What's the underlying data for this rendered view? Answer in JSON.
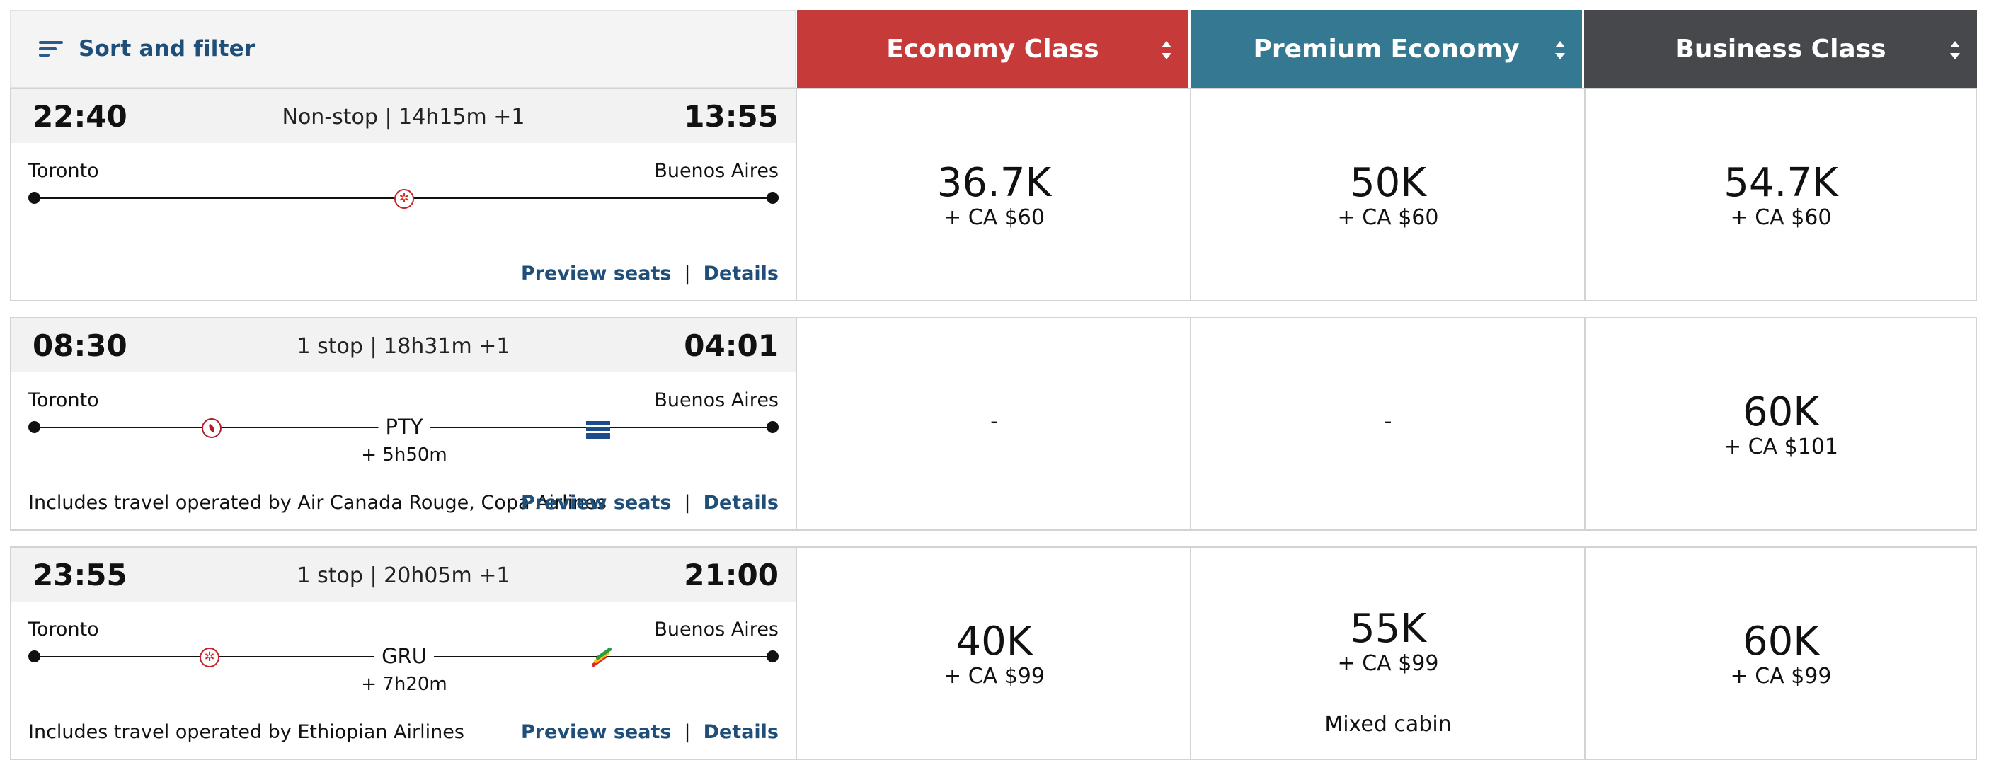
{
  "header": {
    "sort_filter_label": "Sort and filter",
    "cabins": [
      {
        "label": "Economy Class",
        "color": "#c73a3a"
      },
      {
        "label": "Premium Economy",
        "color": "#357891"
      },
      {
        "label": "Business Class",
        "color": "#47484b"
      }
    ]
  },
  "flights": [
    {
      "depart": "22:40",
      "arrive": "13:55",
      "stops": "Non-stop | 14h15m +1",
      "origin": "Toronto",
      "destination": "Buenos Aires",
      "operated_by": "",
      "preview_label": "Preview seats",
      "details_label": "Details",
      "separator": "|",
      "prices": [
        {
          "points": "36.7K",
          "fee": "+ CA $60"
        },
        {
          "points": "50K",
          "fee": "+ CA $60"
        },
        {
          "points": "54.7K",
          "fee": "+ CA $60"
        }
      ]
    },
    {
      "depart": "08:30",
      "arrive": "04:01",
      "stops": "1 stop | 18h31m +1",
      "origin": "Toronto",
      "destination": "Buenos Aires",
      "connection": "PTY",
      "layover": "+ 5h50m",
      "operated_by": "Includes travel operated by Air Canada Rouge, Copa Airlines",
      "preview_label": "Preview seats",
      "details_label": "Details",
      "separator": "|",
      "prices": [
        {
          "unavailable": "-"
        },
        {
          "unavailable": "-"
        },
        {
          "points": "60K",
          "fee": "+ CA $101"
        }
      ]
    },
    {
      "depart": "23:55",
      "arrive": "21:00",
      "stops": "1 stop | 20h05m +1",
      "origin": "Toronto",
      "destination": "Buenos Aires",
      "connection": "GRU",
      "layover": "+ 7h20m",
      "operated_by": "Includes travel operated by Ethiopian Airlines",
      "preview_label": "Preview seats",
      "details_label": "Details",
      "separator": "|",
      "prices": [
        {
          "points": "40K",
          "fee": "+ CA $99"
        },
        {
          "points": "55K",
          "fee": "+ CA $99",
          "note": "Mixed cabin"
        },
        {
          "points": "60K",
          "fee": "+ CA $99"
        }
      ]
    }
  ]
}
